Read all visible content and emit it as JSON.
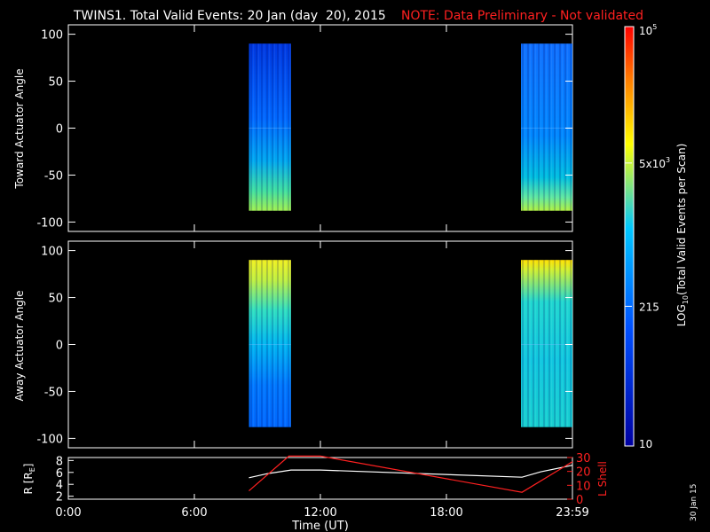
{
  "header": {
    "title": "TWINS1. Total Valid Events: 20 Jan (day  20), 2015",
    "note": "NOTE: Data Preliminary - Not validated",
    "note_color": "#ff2020"
  },
  "footer": {
    "date_stamp": "30 Jan 15"
  },
  "chart_data": [
    {
      "type": "heatmap",
      "ylabel": "Toward Actuator Angle",
      "ylim": [
        -110,
        110
      ],
      "yticks": [
        "100",
        "50",
        "0",
        "-50",
        "-100"
      ],
      "data_blocks": [
        {
          "x_start_hours": 8.6,
          "x_end_hours": 10.6,
          "y_range": [
            -88,
            90
          ],
          "dominant_scale": "low-mid",
          "bottom_edge_value": "high (~5x10^3)"
        },
        {
          "x_start_hours": 21.55,
          "x_end_hours": 24.0,
          "y_range": [
            -88,
            90
          ],
          "dominant_scale": "low-mid",
          "bottom_edge_value": "high (~5x10^3)"
        }
      ]
    },
    {
      "type": "heatmap",
      "ylabel": "Away Actuator Angle",
      "ylim": [
        -110,
        110
      ],
      "yticks": [
        "100",
        "50",
        "0",
        "-50",
        "-100"
      ],
      "data_blocks": [
        {
          "x_start_hours": 8.6,
          "x_end_hours": 10.6,
          "y_range": [
            -88,
            90
          ],
          "dominant_scale": "mid",
          "top_edge_value": "high (~5x10^3)"
        },
        {
          "x_start_hours": 21.55,
          "x_end_hours": 24.0,
          "y_range": [
            -88,
            90
          ],
          "dominant_scale": "mid",
          "top_edge_value": "high (~5x10^3)"
        }
      ]
    },
    {
      "type": "line",
      "xlabel": "Time (UT)",
      "xticks": [
        "0:00",
        "6:00",
        "12:00",
        "18:00",
        "23:59"
      ],
      "xtick_hours": [
        0,
        6,
        12,
        18,
        24
      ],
      "xlim": [
        0,
        24
      ],
      "y_left_label": "R [RE]",
      "y_left_ticks": [
        "8",
        "6",
        "4",
        "2"
      ],
      "y_left_range": [
        1.5,
        8.5
      ],
      "y_right_label": "L Shell",
      "y_right_ticks": [
        "30",
        "20",
        "10",
        "0"
      ],
      "y_right_range": [
        0,
        30
      ],
      "series": [
        {
          "axis": "left",
          "color": "#ffffff",
          "points": [
            [
              8.6,
              5.1
            ],
            [
              9.5,
              5.8
            ],
            [
              10.6,
              6.4
            ],
            [
              12.0,
              6.4
            ],
            [
              21.6,
              5.2
            ],
            [
              22.5,
              6.1
            ],
            [
              24.0,
              7.2
            ]
          ]
        },
        {
          "axis": "right",
          "color": "#ff2020",
          "points": [
            [
              8.6,
              6
            ],
            [
              10.5,
              31
            ],
            [
              12.0,
              31
            ],
            [
              21.6,
              5
            ],
            [
              24.0,
              27
            ]
          ]
        }
      ]
    }
  ],
  "colorbar": {
    "label_prefix": "LOG",
    "label_sub": "10",
    "label_suffix": "(Total Valid Events per Scan)",
    "ticks": [
      {
        "base": "10",
        "exp": "5",
        "value": 100000
      },
      {
        "base": "5x10",
        "exp": "3",
        "value": 5000
      },
      {
        "base": "215",
        "exp": "",
        "value": 215
      },
      {
        "base": "10",
        "exp": "",
        "value": 10
      }
    ],
    "range": [
      10,
      100000
    ],
    "scale": "log",
    "colors": [
      "#0000a0",
      "#0050ff",
      "#00c8ff",
      "#ffff00",
      "#ff8000",
      "#ff0000"
    ]
  }
}
